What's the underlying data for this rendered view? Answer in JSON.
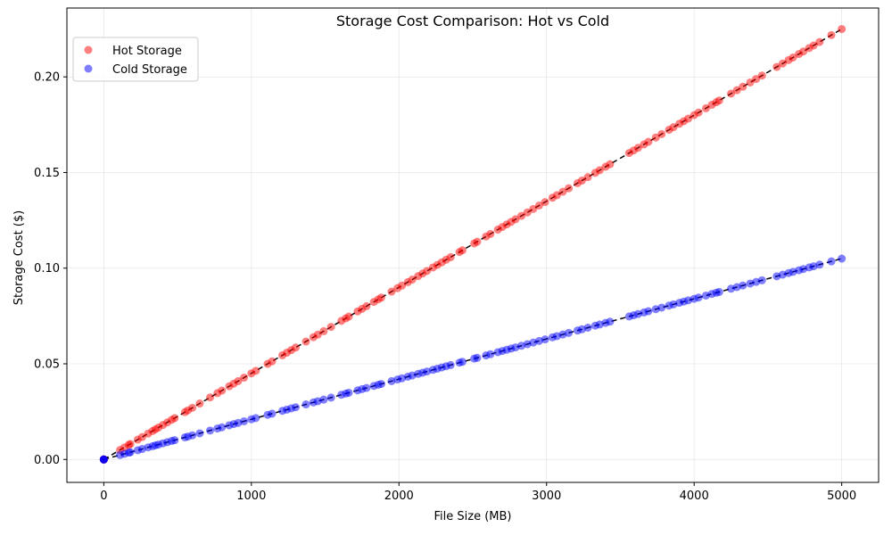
{
  "chart_data": {
    "type": "scatter",
    "title": "Storage Cost Comparison: Hot vs Cold",
    "xlabel": "File Size (MB)",
    "ylabel": "Storage Cost ($)",
    "xlim": [
      -250,
      5250
    ],
    "ylim": [
      -0.012,
      0.236
    ],
    "xticks": [
      0,
      1000,
      2000,
      3000,
      4000,
      5000
    ],
    "xtick_labels": [
      "0",
      "1000",
      "2000",
      "3000",
      "4000",
      "5000"
    ],
    "yticks": [
      0.0,
      0.05,
      0.1,
      0.15,
      0.2
    ],
    "ytick_labels": [
      "0.00",
      "0.05",
      "0.10",
      "0.15",
      "0.20"
    ],
    "grid": true,
    "legend_position": "upper-left",
    "series": [
      {
        "name": "Hot Storage",
        "color": "#ff0000",
        "rate_per_mb": 4.5e-05,
        "x": [
          0,
          0,
          0,
          0,
          110,
          140,
          170,
          180,
          230,
          260,
          300,
          330,
          350,
          370,
          400,
          430,
          460,
          480,
          550,
          570,
          600,
          650,
          720,
          770,
          800,
          850,
          880,
          910,
          950,
          1000,
          1030,
          1110,
          1140,
          1210,
          1240,
          1270,
          1300,
          1370,
          1420,
          1450,
          1490,
          1540,
          1610,
          1640,
          1660,
          1720,
          1750,
          1780,
          1830,
          1860,
          1880,
          1950,
          1990,
          2020,
          2060,
          2090,
          2130,
          2160,
          2190,
          2230,
          2260,
          2290,
          2320,
          2350,
          2410,
          2430,
          2510,
          2530,
          2590,
          2620,
          2670,
          2700,
          2730,
          2760,
          2790,
          2830,
          2870,
          2910,
          2950,
          2990,
          3040,
          3070,
          3110,
          3150,
          3210,
          3240,
          3280,
          3330,
          3360,
          3400,
          3430,
          3560,
          3590,
          3620,
          3660,
          3690,
          3740,
          3780,
          3830,
          3860,
          3900,
          3930,
          3960,
          4000,
          4030,
          4080,
          4120,
          4150,
          4170,
          4250,
          4290,
          4330,
          4380,
          4420,
          4460,
          4560,
          4600,
          4640,
          4670,
          4710,
          4740,
          4780,
          4810,
          4850,
          4930,
          5000
        ],
        "y": [
          0,
          0,
          0,
          0,
          0.00495,
          0.0063,
          0.00765,
          0.0081,
          0.01035,
          0.0117,
          0.0135,
          0.01485,
          0.01575,
          0.01665,
          0.018,
          0.01935,
          0.0207,
          0.0216,
          0.02475,
          0.02565,
          0.027,
          0.02925,
          0.0324,
          0.03465,
          0.036,
          0.03825,
          0.0396,
          0.04095,
          0.04275,
          0.045,
          0.04635,
          0.04995,
          0.0513,
          0.05445,
          0.0558,
          0.05715,
          0.0585,
          0.06165,
          0.0639,
          0.06525,
          0.06705,
          0.0693,
          0.07245,
          0.0738,
          0.0747,
          0.0774,
          0.07875,
          0.0801,
          0.08235,
          0.0837,
          0.0846,
          0.08775,
          0.08955,
          0.0909,
          0.0927,
          0.09405,
          0.09585,
          0.0972,
          0.09855,
          0.10035,
          0.1017,
          0.10305,
          0.1044,
          0.10575,
          0.10845,
          0.10935,
          0.11295,
          0.11385,
          0.11655,
          0.1179,
          0.12015,
          0.1215,
          0.12285,
          0.1242,
          0.12555,
          0.12735,
          0.12915,
          0.13095,
          0.13275,
          0.13455,
          0.1368,
          0.13815,
          0.13995,
          0.14175,
          0.14445,
          0.1458,
          0.1476,
          0.14985,
          0.1512,
          0.153,
          0.15435,
          0.1602,
          0.16155,
          0.1629,
          0.1647,
          0.16605,
          0.1683,
          0.1701,
          0.17235,
          0.1737,
          0.1755,
          0.17685,
          0.1782,
          0.18,
          0.18135,
          0.1836,
          0.1854,
          0.18675,
          0.18765,
          0.19125,
          0.19305,
          0.19485,
          0.1971,
          0.1989,
          0.2007,
          0.2052,
          0.207,
          0.2088,
          0.21015,
          0.21195,
          0.2133,
          0.2151,
          0.21645,
          0.21825,
          0.22185,
          0.225
        ]
      },
      {
        "name": "Cold Storage",
        "color": "#0000ff",
        "rate_per_mb": 2.1e-05,
        "x": [
          0,
          0,
          0,
          0,
          110,
          140,
          170,
          180,
          230,
          260,
          300,
          330,
          350,
          370,
          400,
          430,
          460,
          480,
          550,
          570,
          600,
          650,
          720,
          770,
          800,
          850,
          880,
          910,
          950,
          1000,
          1030,
          1110,
          1140,
          1210,
          1240,
          1270,
          1300,
          1370,
          1420,
          1450,
          1490,
          1540,
          1610,
          1640,
          1660,
          1720,
          1750,
          1780,
          1830,
          1860,
          1880,
          1950,
          1990,
          2020,
          2060,
          2090,
          2130,
          2160,
          2190,
          2230,
          2260,
          2290,
          2320,
          2350,
          2410,
          2430,
          2510,
          2530,
          2590,
          2620,
          2670,
          2700,
          2730,
          2760,
          2790,
          2830,
          2870,
          2910,
          2950,
          2990,
          3040,
          3070,
          3110,
          3150,
          3210,
          3240,
          3280,
          3330,
          3360,
          3400,
          3430,
          3560,
          3590,
          3620,
          3660,
          3690,
          3740,
          3780,
          3830,
          3860,
          3900,
          3930,
          3960,
          4000,
          4030,
          4080,
          4120,
          4150,
          4170,
          4250,
          4290,
          4330,
          4380,
          4420,
          4460,
          4560,
          4600,
          4640,
          4670,
          4710,
          4740,
          4780,
          4810,
          4850,
          4930,
          5000
        ],
        "y": [
          0,
          0,
          0,
          0,
          0.00231,
          0.00294,
          0.00357,
          0.00378,
          0.00483,
          0.00546,
          0.0063,
          0.00693,
          0.00735,
          0.00777,
          0.0084,
          0.00903,
          0.00966,
          0.01008,
          0.01155,
          0.01197,
          0.0126,
          0.01365,
          0.01512,
          0.01617,
          0.0168,
          0.01785,
          0.01848,
          0.01911,
          0.01995,
          0.021,
          0.02163,
          0.02331,
          0.02394,
          0.02541,
          0.02604,
          0.02667,
          0.0273,
          0.02877,
          0.02982,
          0.03045,
          0.03129,
          0.03234,
          0.03381,
          0.03444,
          0.03486,
          0.03612,
          0.03675,
          0.03738,
          0.03843,
          0.03906,
          0.03948,
          0.04095,
          0.04179,
          0.04242,
          0.04326,
          0.04389,
          0.04473,
          0.04536,
          0.04599,
          0.04683,
          0.04746,
          0.04809,
          0.04872,
          0.04935,
          0.05061,
          0.05103,
          0.05271,
          0.05313,
          0.05439,
          0.05502,
          0.05607,
          0.0567,
          0.05733,
          0.05796,
          0.05859,
          0.05943,
          0.06027,
          0.06111,
          0.06195,
          0.06279,
          0.06384,
          0.06447,
          0.06531,
          0.06615,
          0.06741,
          0.06804,
          0.06888,
          0.06993,
          0.07056,
          0.0714,
          0.07203,
          0.07476,
          0.07539,
          0.07602,
          0.07686,
          0.07749,
          0.07854,
          0.07938,
          0.08043,
          0.08106,
          0.0819,
          0.08253,
          0.08316,
          0.084,
          0.08463,
          0.08568,
          0.08652,
          0.08715,
          0.08757,
          0.08925,
          0.09009,
          0.09093,
          0.09198,
          0.09282,
          0.09366,
          0.09576,
          0.0966,
          0.09744,
          0.09807,
          0.09891,
          0.09954,
          0.10038,
          0.10101,
          0.10185,
          0.10353,
          0.105
        ]
      }
    ],
    "trendlines": [
      {
        "x": [
          0,
          5000
        ],
        "y": [
          0,
          0.225
        ],
        "color": "#000000",
        "style": "dashed"
      },
      {
        "x": [
          0,
          5000
        ],
        "y": [
          0,
          0.105
        ],
        "color": "#000000",
        "style": "dashed"
      }
    ]
  }
}
